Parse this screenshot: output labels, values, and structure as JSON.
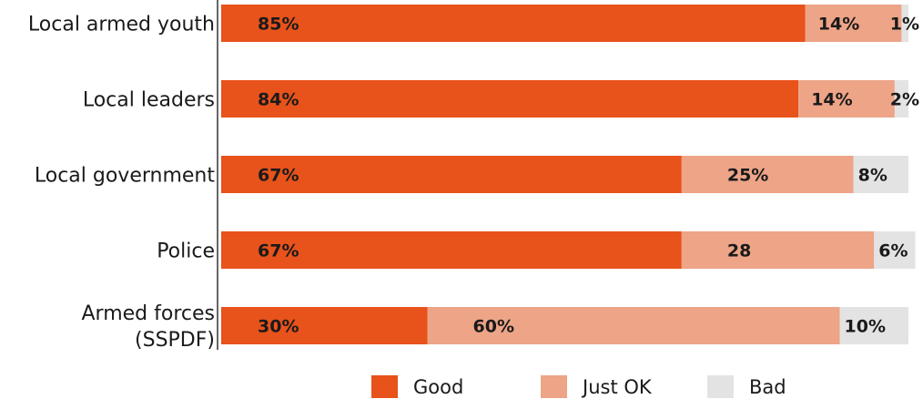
{
  "chart_data": {
    "type": "bar",
    "orientation": "horizontal",
    "stacked": true,
    "categories": [
      [
        "Local armed youth"
      ],
      [
        "Local leaders"
      ],
      [
        "Local government"
      ],
      [
        "Police"
      ],
      [
        "Armed forces",
        "(SSPDF)"
      ]
    ],
    "series": [
      {
        "name": "Good",
        "color": "#E8521B",
        "values": [
          85,
          84,
          67,
          67,
          30
        ],
        "labels": [
          "85%",
          "84%",
          "67%",
          "67%",
          "30%"
        ]
      },
      {
        "name": "Just OK",
        "color": "#EDA487",
        "values": [
          14,
          14,
          25,
          28,
          60
        ],
        "labels": [
          "14%",
          "14%",
          "25%",
          "28",
          "60%"
        ]
      },
      {
        "name": "Bad",
        "color": "#E3E3E3",
        "values": [
          1,
          2,
          8,
          6,
          10
        ],
        "labels": [
          "1%",
          "2%",
          "8%",
          "6%",
          "10%"
        ]
      }
    ],
    "xlim": [
      0,
      100
    ],
    "grid": false,
    "legend_position": "bottom"
  }
}
